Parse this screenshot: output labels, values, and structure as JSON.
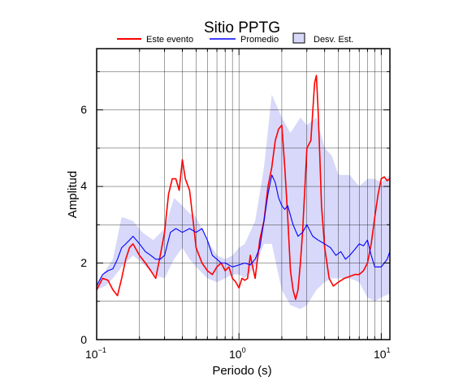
{
  "chart_data": {
    "type": "line",
    "title": "Sitio PPTG",
    "xlabel": "Periodo (s)",
    "ylabel": "Amplitud",
    "x_scale": "log",
    "xlim": [
      0.1,
      11.5
    ],
    "ylim": [
      0,
      7.6
    ],
    "y_ticks": [
      0,
      2,
      4,
      6
    ],
    "x_tick_labels": [
      {
        "base": "10",
        "exp": "−1",
        "value": 0.1
      },
      {
        "base": "10",
        "exp": "0",
        "value": 1
      },
      {
        "base": "10",
        "exp": "1",
        "value": 10
      }
    ],
    "grid": true,
    "legend_position": "top",
    "legend": [
      {
        "label": "Este evento",
        "kind": "line",
        "color": "#ff0000"
      },
      {
        "label": "Promedio",
        "kind": "line",
        "color": "#0000ff"
      },
      {
        "label": "Desv. Est.",
        "kind": "box",
        "color": "#d8d8fa"
      }
    ],
    "band": {
      "name": "Desv. Est.",
      "color": "#d8d8fa",
      "x": [
        0.1,
        0.115,
        0.13,
        0.15,
        0.18,
        0.21,
        0.25,
        0.3,
        0.35,
        0.4,
        0.45,
        0.5,
        0.6,
        0.7,
        0.8,
        0.9,
        1.0,
        1.1,
        1.3,
        1.5,
        1.7,
        2.0,
        2.3,
        2.7,
        3.0,
        3.5,
        4.0,
        4.5,
        5.0,
        6.0,
        7.0,
        8.0,
        9.0,
        10.0,
        11.5
      ],
      "upper": [
        1.5,
        1.8,
        2.1,
        3.2,
        3.1,
        2.8,
        2.6,
        2.9,
        3.7,
        3.5,
        3.3,
        3.2,
        2.6,
        2.2,
        2.1,
        2.2,
        2.4,
        2.5,
        3.1,
        4.5,
        6.4,
        5.8,
        5.4,
        5.8,
        5.6,
        5.8,
        5.0,
        4.8,
        4.3,
        4.3,
        4.0,
        4.2,
        4.2,
        4.1,
        4.3
      ],
      "lower": [
        1.3,
        1.4,
        1.6,
        1.9,
        2.2,
        2.0,
        1.7,
        1.6,
        2.1,
        2.4,
        2.1,
        1.9,
        1.6,
        1.5,
        1.6,
        1.7,
        1.7,
        1.6,
        1.9,
        2.5,
        2.5,
        1.3,
        0.9,
        0.8,
        0.9,
        1.3,
        1.5,
        1.6,
        1.6,
        1.6,
        1.5,
        1.1,
        1.0,
        1.1,
        1.2
      ]
    },
    "series": [
      {
        "name": "Este evento",
        "color": "#ff0000",
        "x": [
          0.1,
          0.11,
          0.12,
          0.13,
          0.14,
          0.15,
          0.16,
          0.17,
          0.18,
          0.19,
          0.2,
          0.22,
          0.24,
          0.26,
          0.28,
          0.3,
          0.32,
          0.34,
          0.36,
          0.38,
          0.4,
          0.42,
          0.45,
          0.48,
          0.5,
          0.55,
          0.6,
          0.65,
          0.7,
          0.75,
          0.8,
          0.85,
          0.9,
          0.95,
          1.0,
          1.05,
          1.1,
          1.15,
          1.2,
          1.3,
          1.4,
          1.5,
          1.6,
          1.7,
          1.8,
          1.9,
          2.0,
          2.1,
          2.2,
          2.3,
          2.4,
          2.5,
          2.6,
          2.7,
          2.8,
          3.0,
          3.2,
          3.4,
          3.5,
          3.6,
          3.7,
          3.8,
          4.0,
          4.3,
          4.6,
          5.0,
          5.5,
          6.0,
          6.5,
          7.0,
          7.5,
          8.0,
          8.5,
          9.0,
          9.5,
          10.0,
          10.5,
          11.0,
          11.5
        ],
        "y": [
          1.3,
          1.6,
          1.55,
          1.3,
          1.15,
          1.6,
          2.1,
          2.4,
          2.5,
          2.35,
          2.2,
          2.0,
          1.8,
          1.6,
          2.2,
          2.8,
          3.8,
          4.2,
          4.2,
          3.9,
          4.7,
          4.2,
          3.9,
          3.0,
          2.4,
          2.0,
          1.8,
          1.7,
          1.9,
          2.0,
          1.8,
          1.9,
          1.6,
          1.5,
          1.35,
          1.6,
          1.55,
          1.6,
          2.2,
          1.6,
          2.6,
          3.1,
          4.0,
          4.5,
          5.2,
          5.5,
          5.6,
          4.5,
          3.2,
          1.8,
          1.3,
          1.05,
          1.3,
          2.0,
          2.8,
          5.0,
          5.2,
          6.7,
          6.9,
          6.0,
          4.8,
          3.5,
          2.4,
          1.6,
          1.4,
          1.5,
          1.6,
          1.65,
          1.7,
          1.7,
          1.8,
          2.0,
          2.5,
          3.2,
          3.8,
          4.2,
          4.25,
          4.15,
          4.2
        ]
      },
      {
        "name": "Promedio",
        "color": "#0000ff",
        "x": [
          0.1,
          0.11,
          0.12,
          0.13,
          0.14,
          0.15,
          0.16,
          0.17,
          0.18,
          0.19,
          0.2,
          0.22,
          0.24,
          0.26,
          0.28,
          0.3,
          0.33,
          0.36,
          0.4,
          0.45,
          0.5,
          0.55,
          0.6,
          0.65,
          0.7,
          0.75,
          0.8,
          0.9,
          1.0,
          1.1,
          1.2,
          1.3,
          1.4,
          1.5,
          1.6,
          1.7,
          1.8,
          1.9,
          2.0,
          2.1,
          2.2,
          2.4,
          2.6,
          2.8,
          3.0,
          3.3,
          3.6,
          4.0,
          4.4,
          4.8,
          5.2,
          5.6,
          6.0,
          6.5,
          7.0,
          7.5,
          8.0,
          8.5,
          9.0,
          10.0,
          10.5,
          11.0,
          11.5
        ],
        "y": [
          1.4,
          1.7,
          1.8,
          1.85,
          2.1,
          2.4,
          2.5,
          2.6,
          2.7,
          2.6,
          2.5,
          2.3,
          2.2,
          2.1,
          2.1,
          2.2,
          2.8,
          2.9,
          2.8,
          2.9,
          2.8,
          2.9,
          2.6,
          2.2,
          2.1,
          2.0,
          2.0,
          1.9,
          1.95,
          2.0,
          1.95,
          2.1,
          2.4,
          3.1,
          3.8,
          4.3,
          4.1,
          3.7,
          3.5,
          3.4,
          3.5,
          3.0,
          2.7,
          2.8,
          3.0,
          2.7,
          2.6,
          2.5,
          2.4,
          2.2,
          2.3,
          2.1,
          2.2,
          2.35,
          2.5,
          2.45,
          2.6,
          2.2,
          1.9,
          1.9,
          2.0,
          2.1,
          2.3
        ]
      }
    ]
  }
}
